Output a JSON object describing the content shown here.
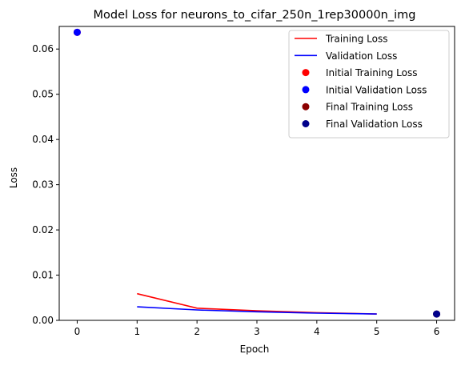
{
  "chart_data": {
    "type": "line",
    "title": "Model Loss for neurons_to_cifar_250n_1rep30000n_img",
    "xlabel": "Epoch",
    "ylabel": "Loss",
    "xlim": [
      -0.3,
      6.3
    ],
    "ylim": [
      0,
      0.065
    ],
    "xticks": [
      0,
      1,
      2,
      3,
      4,
      5,
      6
    ],
    "yticks": [
      0.0,
      0.01,
      0.02,
      0.03,
      0.04,
      0.05,
      0.06
    ],
    "ytick_labels": [
      "0.00",
      "0.01",
      "0.02",
      "0.03",
      "0.04",
      "0.05",
      "0.06"
    ],
    "grid": false,
    "legend_position": "top-right",
    "series": [
      {
        "name": "Training Loss",
        "kind": "line",
        "color": "#ff0000",
        "x": [
          1,
          2,
          3,
          4,
          5
        ],
        "y": [
          0.0059,
          0.0027,
          0.0021,
          0.0017,
          0.0014
        ]
      },
      {
        "name": "Validation Loss",
        "kind": "line",
        "color": "#0000ff",
        "x": [
          1,
          2,
          3,
          4,
          5
        ],
        "y": [
          0.003,
          0.0023,
          0.0019,
          0.0016,
          0.0014
        ]
      },
      {
        "name": "Initial Training Loss",
        "kind": "point",
        "color": "#ff0000",
        "x": [
          0
        ],
        "y": [
          0.0637
        ]
      },
      {
        "name": "Initial Validation Loss",
        "kind": "point",
        "color": "#0000ff",
        "x": [
          0
        ],
        "y": [
          0.0637
        ]
      },
      {
        "name": "Final Training Loss",
        "kind": "point",
        "color": "#8b0000",
        "x": [
          6
        ],
        "y": [
          0.0014
        ]
      },
      {
        "name": "Final Validation Loss",
        "kind": "point",
        "color": "#00008b",
        "x": [
          6
        ],
        "y": [
          0.0014
        ]
      }
    ]
  }
}
